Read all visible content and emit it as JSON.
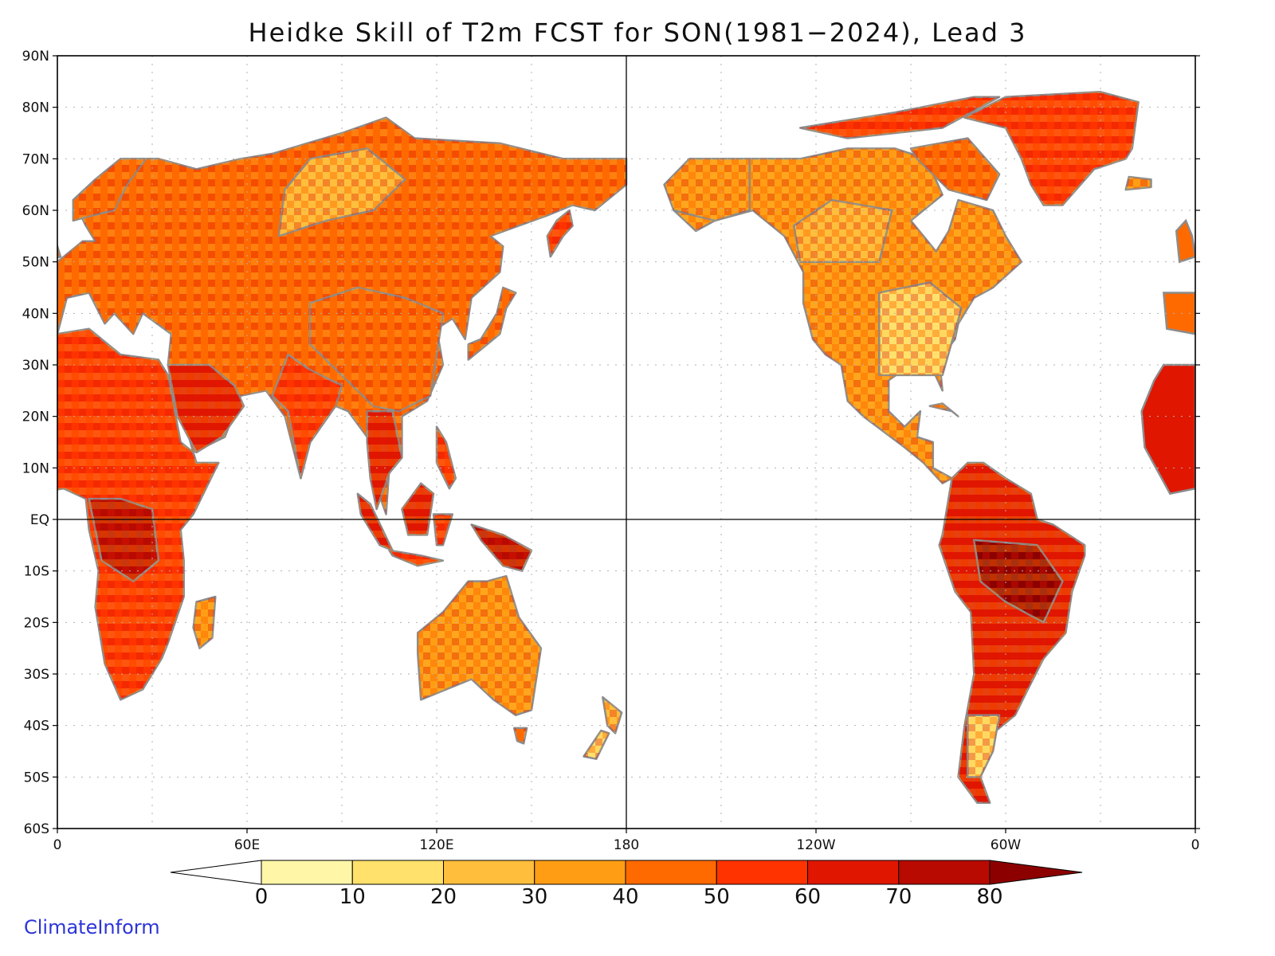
{
  "title": "Heidke Skill of T2m FCST for SON(1981−2024), Lead 3",
  "credit": "ClimateInform",
  "lat_ticks": [
    "90N",
    "80N",
    "70N",
    "60N",
    "50N",
    "40N",
    "30N",
    "20N",
    "10N",
    "EQ",
    "10S",
    "20S",
    "30S",
    "40S",
    "50S",
    "60S"
  ],
  "lon_ticks": [
    "0",
    "60E",
    "120E",
    "180",
    "120W",
    "60W",
    "0"
  ],
  "colorbar": {
    "labels": [
      "0",
      "10",
      "20",
      "30",
      "40",
      "50",
      "60",
      "70",
      "80"
    ],
    "colors": [
      "#ffffff",
      "#fff6a8",
      "#ffe16b",
      "#ffbf3c",
      "#ff9e14",
      "#ff6a00",
      "#ff3300",
      "#e01600",
      "#b80a00",
      "#8c0000"
    ]
  },
  "colors": {
    "coast": "#8c8c8c",
    "lakes": "#000000",
    "credit": "#2d35d8"
  }
}
